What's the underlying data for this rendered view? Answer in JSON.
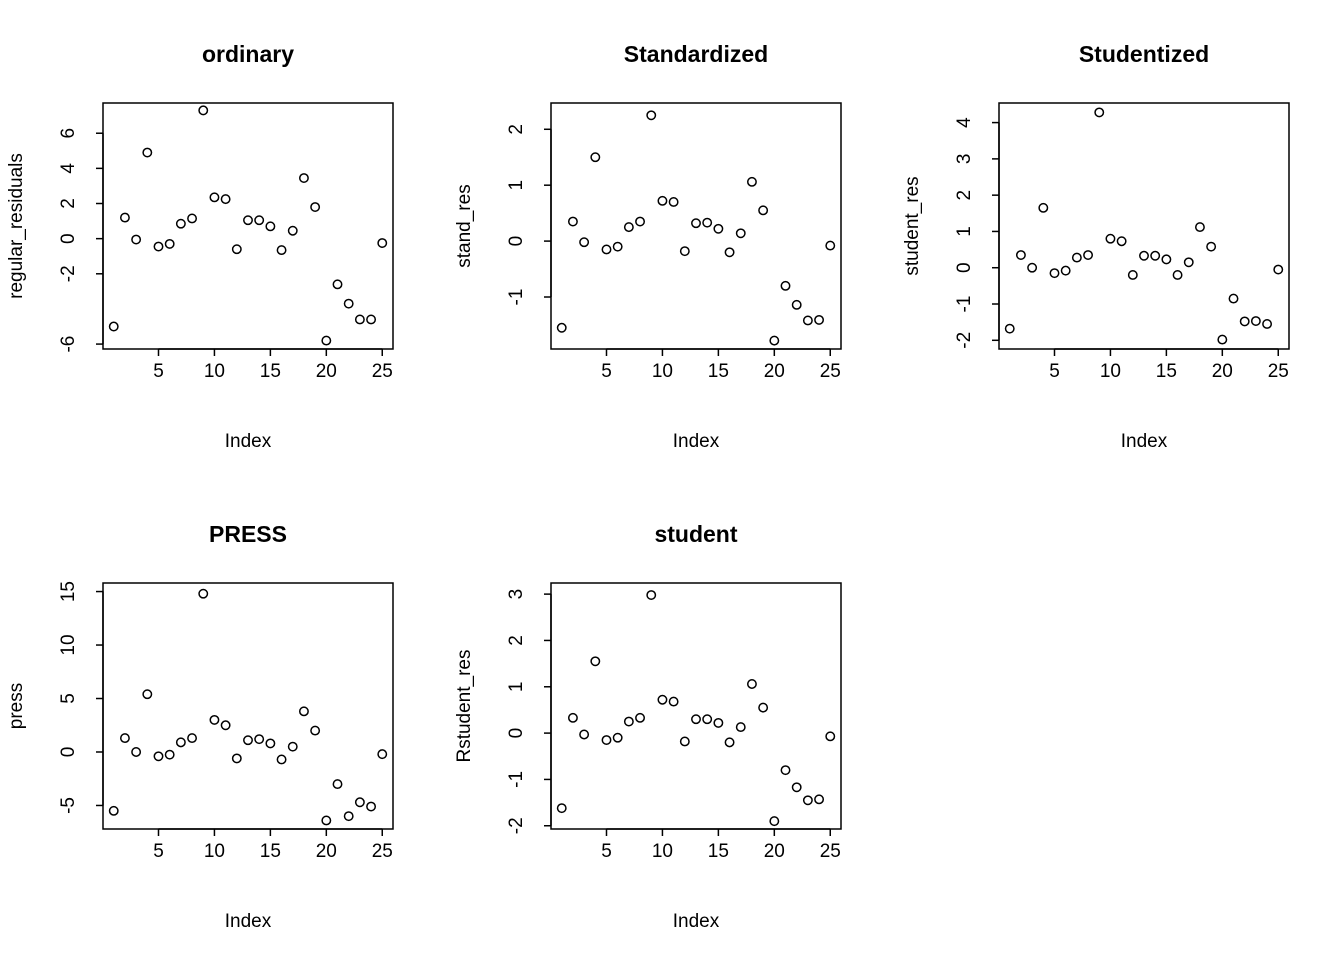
{
  "chart_data": [
    {
      "type": "scatter",
      "title": "ordinary",
      "xlabel": "Index",
      "ylabel": "regular_residuals",
      "xticks": [
        5,
        10,
        15,
        20,
        25
      ],
      "yticks": [
        -6,
        -2,
        0,
        2,
        4,
        6
      ],
      "xlim": [
        0.04,
        25.96
      ],
      "ylim": [
        -6.28,
        7.72
      ],
      "grid": false,
      "x": [
        1,
        2,
        3,
        4,
        5,
        6,
        7,
        8,
        9,
        10,
        11,
        12,
        13,
        14,
        15,
        16,
        17,
        18,
        19,
        20,
        21,
        22,
        23,
        24,
        25
      ],
      "y": [
        -5.0,
        1.2,
        -0.05,
        4.9,
        -0.45,
        -0.3,
        0.85,
        1.15,
        7.3,
        2.35,
        2.25,
        -0.6,
        1.05,
        1.05,
        0.7,
        -0.65,
        0.45,
        3.45,
        1.8,
        -5.8,
        -2.6,
        -3.7,
        -4.6,
        -4.6,
        -0.25
      ]
    },
    {
      "type": "scatter",
      "title": "Standardized",
      "xlabel": "Index",
      "ylabel": "stand_res",
      "xticks": [
        5,
        10,
        15,
        20,
        25
      ],
      "yticks": [
        -1,
        0,
        1,
        2
      ],
      "xlim": [
        0.04,
        25.96
      ],
      "ylim": [
        -1.93,
        2.47
      ],
      "grid": false,
      "x": [
        1,
        2,
        3,
        4,
        5,
        6,
        7,
        8,
        9,
        10,
        11,
        12,
        13,
        14,
        15,
        16,
        17,
        18,
        19,
        20,
        21,
        22,
        23,
        24,
        25
      ],
      "y": [
        -1.55,
        0.35,
        -0.02,
        1.5,
        -0.15,
        -0.1,
        0.25,
        0.35,
        2.25,
        0.72,
        0.7,
        -0.18,
        0.32,
        0.33,
        0.22,
        -0.2,
        0.14,
        1.06,
        0.55,
        -1.78,
        -0.8,
        -1.14,
        -1.42,
        -1.41,
        -0.08
      ]
    },
    {
      "type": "scatter",
      "title": "Studentized",
      "xlabel": "Index",
      "ylabel": "student_res",
      "xticks": [
        5,
        10,
        15,
        20,
        25
      ],
      "yticks": [
        -2,
        -1,
        0,
        1,
        2,
        3,
        4
      ],
      "xlim": [
        0.04,
        25.96
      ],
      "ylim": [
        -2.24,
        4.54
      ],
      "grid": false,
      "x": [
        1,
        2,
        3,
        4,
        5,
        6,
        7,
        8,
        9,
        10,
        11,
        12,
        13,
        14,
        15,
        16,
        17,
        18,
        19,
        20,
        21,
        22,
        23,
        24,
        25
      ],
      "y": [
        -1.68,
        0.35,
        0.0,
        1.65,
        -0.15,
        -0.08,
        0.28,
        0.35,
        4.28,
        0.8,
        0.73,
        -0.2,
        0.33,
        0.33,
        0.23,
        -0.2,
        0.15,
        1.12,
        0.58,
        -1.98,
        -0.85,
        -1.48,
        -1.47,
        -1.55,
        -0.05
      ]
    },
    {
      "type": "scatter",
      "title": "PRESS",
      "xlabel": "Index",
      "ylabel": "press",
      "xticks": [
        5,
        10,
        15,
        20,
        25
      ],
      "yticks": [
        -5,
        0,
        5,
        10,
        15
      ],
      "xlim": [
        0.04,
        25.96
      ],
      "ylim": [
        -7.2,
        15.8
      ],
      "grid": false,
      "x": [
        1,
        2,
        3,
        4,
        5,
        6,
        7,
        8,
        9,
        10,
        11,
        12,
        13,
        14,
        15,
        16,
        17,
        18,
        19,
        20,
        21,
        22,
        23,
        24,
        25
      ],
      "y": [
        -5.5,
        1.3,
        0.0,
        5.4,
        -0.4,
        -0.25,
        0.9,
        1.3,
        14.8,
        3.0,
        2.5,
        -0.6,
        1.1,
        1.2,
        0.8,
        -0.7,
        0.5,
        3.8,
        2.0,
        -6.4,
        -3.0,
        -6.0,
        -4.7,
        -5.1,
        -0.2
      ]
    },
    {
      "type": "scatter",
      "title": "student",
      "xlabel": "Index",
      "ylabel": "Rstudent_res",
      "xticks": [
        5,
        10,
        15,
        20,
        25
      ],
      "yticks": [
        -2,
        -1,
        0,
        1,
        2,
        3
      ],
      "xlim": [
        0.04,
        25.96
      ],
      "ylim": [
        -2.07,
        3.24
      ],
      "grid": false,
      "x": [
        1,
        2,
        3,
        4,
        5,
        6,
        7,
        8,
        9,
        10,
        11,
        12,
        13,
        14,
        15,
        16,
        17,
        18,
        19,
        20,
        21,
        22,
        23,
        24,
        25
      ],
      "y": [
        -1.62,
        0.33,
        -0.03,
        1.55,
        -0.15,
        -0.1,
        0.25,
        0.33,
        2.98,
        0.72,
        0.68,
        -0.18,
        0.3,
        0.3,
        0.22,
        -0.2,
        0.13,
        1.06,
        0.55,
        -1.9,
        -0.8,
        -1.17,
        -1.45,
        -1.43,
        -0.07
      ]
    }
  ]
}
